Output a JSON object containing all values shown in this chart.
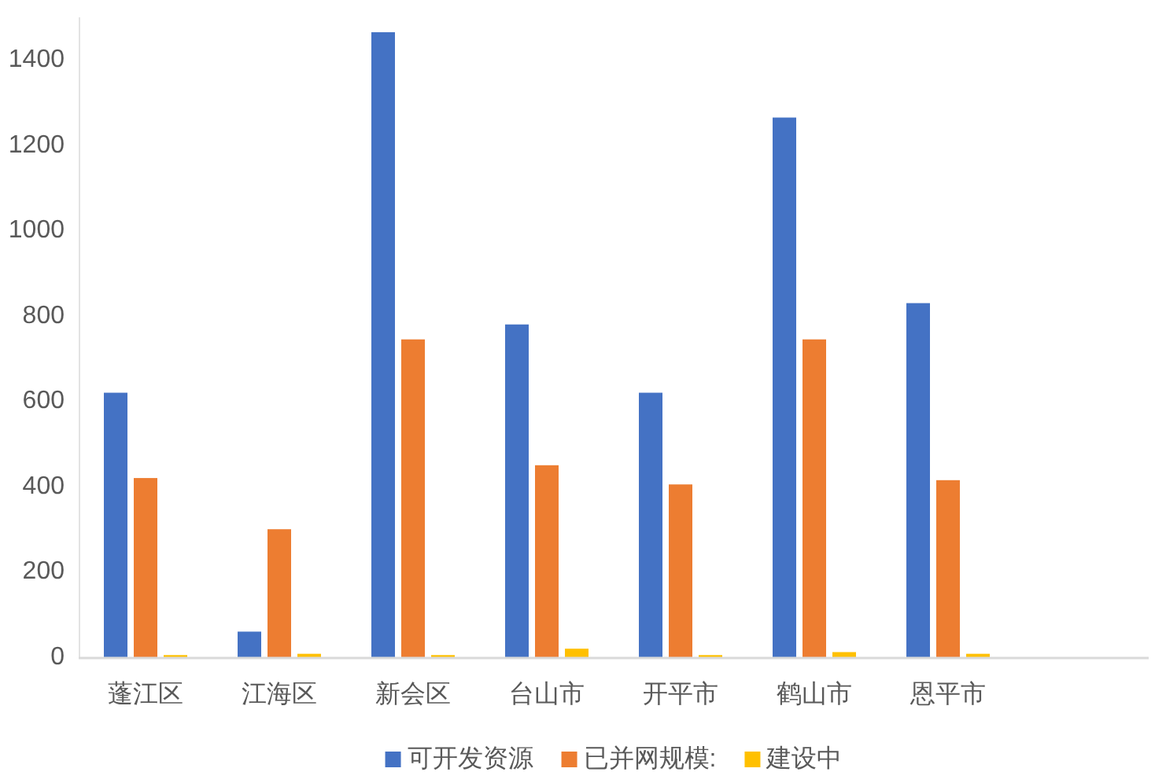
{
  "chart_data": {
    "type": "bar",
    "categories": [
      "蓬江区",
      "江海区",
      "新会区",
      "台山市",
      "开平市",
      "鹤山市",
      "恩平市",
      null
    ],
    "series": [
      {
        "name": "可开发资源",
        "color": "#4472c4",
        "values": [
          620,
          60,
          1465,
          780,
          620,
          1265,
          830,
          null
        ]
      },
      {
        "name": "已并网规模:",
        "color": "#ed7d31",
        "values": [
          420,
          300,
          745,
          450,
          405,
          745,
          415,
          null
        ]
      },
      {
        "name": "建设中",
        "color": "#ffc000",
        "values": [
          5,
          8,
          5,
          20,
          5,
          12,
          8,
          null
        ]
      }
    ],
    "ylim": [
      0,
      1500
    ],
    "yticks": [
      0,
      200,
      400,
      600,
      800,
      1000,
      1200,
      1400
    ],
    "legend": "bottom"
  }
}
